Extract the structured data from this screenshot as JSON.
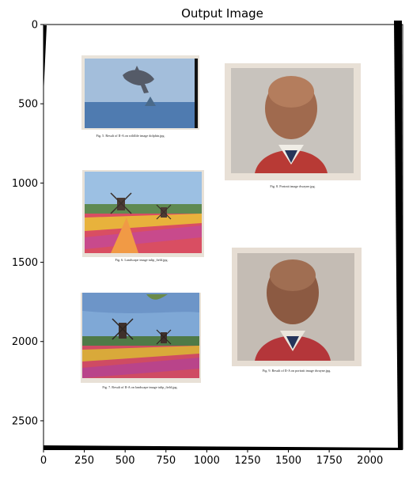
{
  "chart_data": {
    "type": "image",
    "title": "Output Image",
    "xlim": [
      0,
      2200
    ],
    "ylim": [
      2680,
      0
    ],
    "xticks": [
      0,
      250,
      500,
      750,
      1000,
      1250,
      1500,
      1750,
      2000
    ],
    "yticks": [
      0,
      500,
      1000,
      1500,
      2000,
      2500
    ],
    "captions": [
      "Fig. 5.  Result of II-A on wildlife image dolphin.jpg.",
      "Fig. 8.  Portrait image dwayne.jpg.",
      "Fig. 6.  Landscape image tulip_field.jpg.",
      "Fig. 9.  Result of II-A on portrait image dwayne.jpg.",
      "Fig. 7.  Result of II-A on landscape image tulip_field.jpg."
    ]
  }
}
